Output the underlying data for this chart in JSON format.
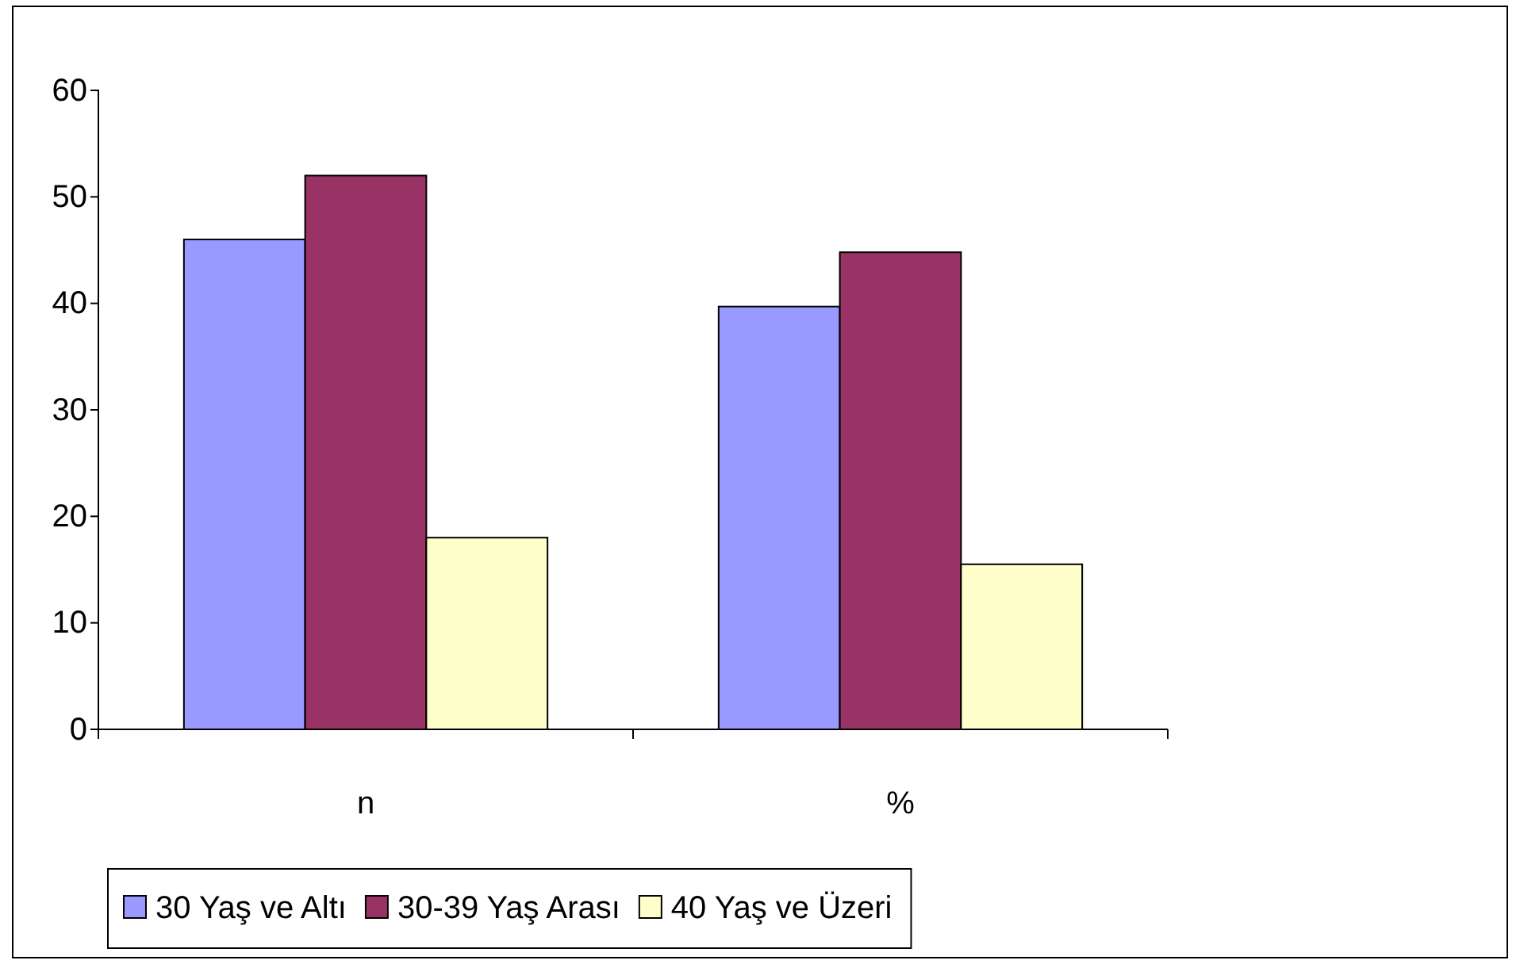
{
  "chart_data": {
    "type": "bar",
    "categories": [
      "n",
      "%"
    ],
    "series": [
      {
        "name": "30 Yaş ve Altı",
        "color": "#9999ff",
        "values": [
          46,
          39.7
        ]
      },
      {
        "name": "30-39 Yaş Arası",
        "color": "#993366",
        "values": [
          52,
          44.8
        ]
      },
      {
        "name": "40 Yaş ve Üzeri",
        "color": "#ffffcc",
        "values": [
          18,
          15.5
        ]
      }
    ],
    "ylim": [
      0,
      60
    ],
    "yticks": [
      0,
      10,
      20,
      30,
      40,
      50,
      60
    ],
    "grid": false,
    "legend": "bottom"
  }
}
